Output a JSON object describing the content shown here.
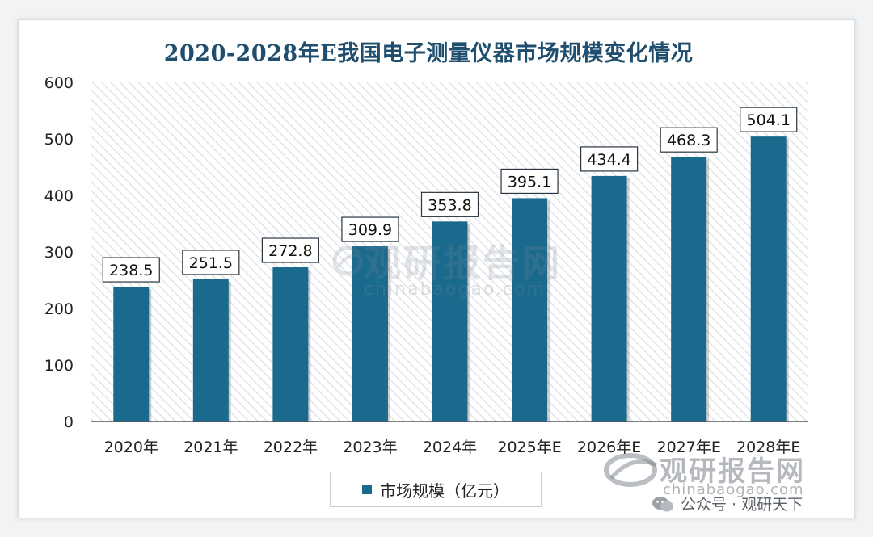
{
  "chart_data": {
    "type": "bar",
    "title": "2020-2028年E我国电子测量仪器市场规模变化情况",
    "categories": [
      "2020年",
      "2021年",
      "2022年",
      "2023年",
      "2024年",
      "2025年E",
      "2026年E",
      "2027年E",
      "2028年E"
    ],
    "series": [
      {
        "name": "市场规模（亿元）",
        "values": [
          238.5,
          251.5,
          272.8,
          309.9,
          353.8,
          395.1,
          434.4,
          468.3,
          504.1
        ],
        "data_labels": [
          "238.5",
          "251.5",
          "272.8",
          "309.9",
          "353.8",
          "395.1",
          "434.4",
          "468.3",
          "504.1"
        ]
      }
    ],
    "ylim": [
      0,
      600
    ],
    "yticks": [
      0,
      100,
      200,
      300,
      400,
      500,
      600
    ],
    "ytick_labels": [
      "0",
      "100",
      "200",
      "300",
      "400",
      "500",
      "600"
    ],
    "grid": false,
    "legend_position": "bottom-center",
    "colors": {
      "bar": "#1a6a8e",
      "bar_dark": "#0f4f6d",
      "title": "#1f4e6e",
      "plot_hatch": "#e3e6ea"
    }
  },
  "watermark": {
    "brand": "观研报告网",
    "domain": "chinabaogao.com"
  },
  "footer": {
    "account": "公众号 · 观研天下"
  }
}
